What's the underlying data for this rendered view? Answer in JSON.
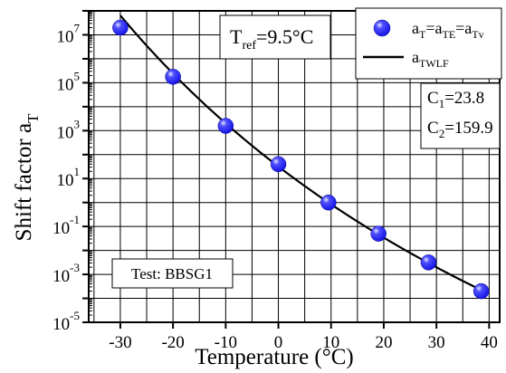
{
  "chart_data": {
    "type": "scatter",
    "title": "",
    "xlabel": "Temperature (°C)",
    "ylabel": {
      "main": "Shift factor a",
      "sub": "T"
    },
    "xlim": [
      -36,
      42
    ],
    "ylim_log10": [
      -5,
      8
    ],
    "log_y": true,
    "grid": true,
    "x_ticks": [
      {
        "value": -30,
        "label": "-30"
      },
      {
        "value": -20,
        "label": "-20"
      },
      {
        "value": -10,
        "label": "-10"
      },
      {
        "value": 0,
        "label": "0"
      },
      {
        "value": 10,
        "label": "10"
      },
      {
        "value": 20,
        "label": "20"
      },
      {
        "value": 30,
        "label": "30"
      },
      {
        "value": 40,
        "label": "40"
      }
    ],
    "y_ticks": [
      {
        "exp": -5,
        "base": "10",
        "sup": "-5"
      },
      {
        "exp": -3,
        "base": "10",
        "sup": "-3"
      },
      {
        "exp": -1,
        "base": "10",
        "sup": "-1"
      },
      {
        "exp": 1,
        "base": "10",
        "sup": "1"
      },
      {
        "exp": 3,
        "base": "10",
        "sup": "3"
      },
      {
        "exp": 5,
        "base": "10",
        "sup": "5"
      },
      {
        "exp": 7,
        "base": "10",
        "sup": "7"
      }
    ],
    "series": [
      {
        "name": "aT=aTE=aTv",
        "kind": "points",
        "color": "#1414e6",
        "points": [
          {
            "x": -30,
            "log10y": 7.3
          },
          {
            "x": -20,
            "log10y": 5.25
          },
          {
            "x": -10,
            "log10y": 3.2
          },
          {
            "x": 0,
            "log10y": 1.6
          },
          {
            "x": 9.5,
            "log10y": 0.0
          },
          {
            "x": 19,
            "log10y": -1.3
          },
          {
            "x": 28.5,
            "log10y": -2.5
          },
          {
            "x": 38.5,
            "log10y": -3.7
          }
        ]
      },
      {
        "name": "aTWLF",
        "kind": "line",
        "color": "#000000",
        "model": "WLF",
        "C1": 23.8,
        "C2": 159.9,
        "Tref": 9.5
      }
    ],
    "legend": {
      "placement": "top-right",
      "entries": [
        {
          "series": 0,
          "base": "a",
          "parts": [
            [
              "T",
              "=a"
            ],
            [
              "TE",
              "=a"
            ],
            [
              "Tv",
              ""
            ]
          ]
        },
        {
          "series": 1,
          "base": "a",
          "parts": [
            [
              "TWLF",
              ""
            ]
          ]
        }
      ]
    },
    "annotations": {
      "tref": {
        "base": "T",
        "sub": "ref",
        "rest": "=9.5°C"
      },
      "c1": {
        "base": "C",
        "sub": "1",
        "rest": "=23.8"
      },
      "c2": {
        "base": "C",
        "sub": "2",
        "rest": "=159.9"
      },
      "test": "Test: BBSG1"
    }
  }
}
